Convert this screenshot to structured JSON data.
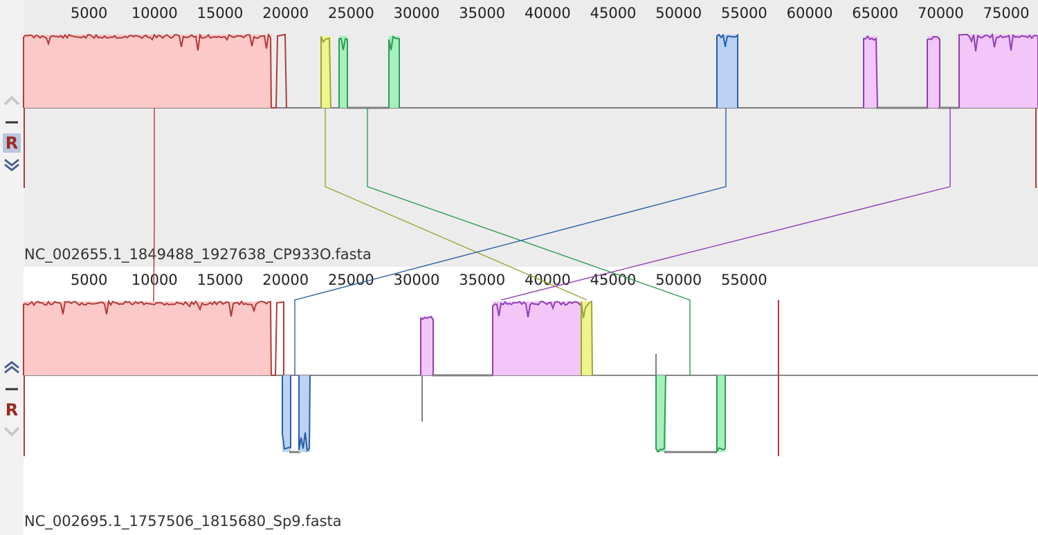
{
  "genomes": [
    {
      "name": "NC_002655.1_1849488_1927638_CP933O.fasta",
      "ruler": [
        "5000",
        "10000",
        "15000",
        "20000",
        "25000",
        "30000",
        "35000",
        "40000",
        "45000",
        "50000",
        "55000",
        "60000",
        "65000",
        "70000",
        "75000"
      ],
      "controls": {
        "up": "chevron-up-icon",
        "minus": "minus-icon",
        "r_label": "R",
        "down": "chevron-down-icon"
      }
    },
    {
      "name": "NC_002695.1_1757506_1815680_Sp9.fasta",
      "ruler": [
        "5000",
        "10000",
        "15000",
        "20000",
        "25000",
        "30000",
        "35000",
        "40000",
        "45000",
        "50000",
        "55000"
      ],
      "controls": {
        "up": "chevron-up-icon",
        "minus": "minus-icon",
        "r_label": "R",
        "down": "chevron-down-icon"
      }
    }
  ],
  "colors": {
    "red": "#b03a3a",
    "red_fill": "#fcc8c8",
    "yellow": "#9aa53a",
    "yellow_fill": "#eef58a",
    "green": "#2e9b56",
    "green_fill": "#a6f0bd",
    "blue": "#2a5ea8",
    "blue_fill": "#bcd2f2",
    "purple": "#8e3fb5",
    "purple_fill": "#f2c6f8",
    "gray": "#808080"
  }
}
